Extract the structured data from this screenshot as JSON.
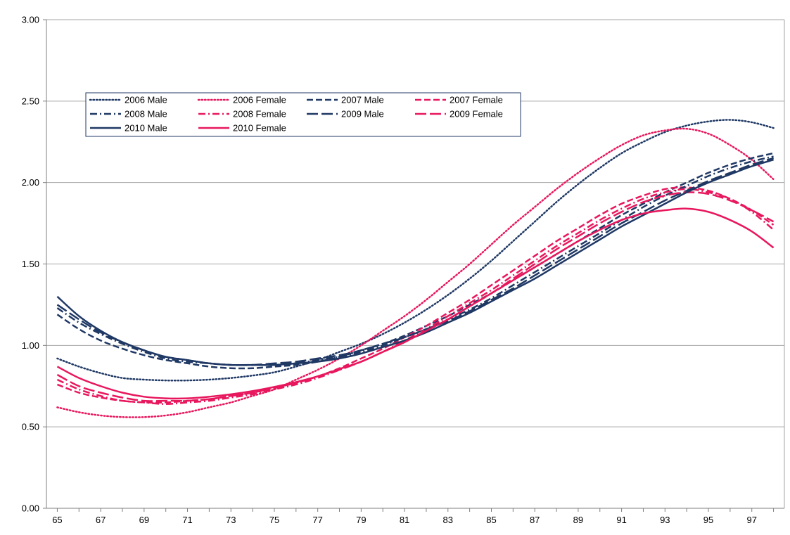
{
  "chart_data": {
    "type": "line",
    "title": "",
    "xlabel": "",
    "ylabel": "",
    "x_ticks": [
      "65",
      "67",
      "69",
      "71",
      "73",
      "75",
      "77",
      "79",
      "81",
      "83",
      "85",
      "87",
      "89",
      "91",
      "93",
      "95",
      "97"
    ],
    "y_ticks": [
      "0.00",
      "0.50",
      "1.00",
      "1.50",
      "2.00",
      "2.50",
      "3.00"
    ],
    "xlim": [
      64.5,
      98.5
    ],
    "ylim": [
      0,
      3
    ],
    "grid": "horizontal",
    "legend_position": "upper-left",
    "x": [
      65,
      66,
      67,
      68,
      69,
      70,
      71,
      72,
      73,
      74,
      75,
      76,
      77,
      78,
      79,
      80,
      81,
      82,
      83,
      84,
      85,
      86,
      87,
      88,
      89,
      90,
      91,
      92,
      93,
      94,
      95,
      96,
      97,
      98
    ],
    "series": [
      {
        "name": "2006 Male",
        "color": "#1f3864",
        "dash": "dot",
        "values": [
          0.92,
          0.87,
          0.83,
          0.8,
          0.79,
          0.785,
          0.785,
          0.79,
          0.8,
          0.815,
          0.835,
          0.87,
          0.91,
          0.96,
          1.01,
          1.07,
          1.14,
          1.22,
          1.31,
          1.41,
          1.52,
          1.64,
          1.76,
          1.88,
          1.99,
          2.09,
          2.18,
          2.25,
          2.31,
          2.35,
          2.375,
          2.385,
          2.37,
          2.335
        ]
      },
      {
        "name": "2006 Female",
        "color": "#e8175d",
        "dash": "dot",
        "values": [
          0.62,
          0.59,
          0.57,
          0.56,
          0.56,
          0.57,
          0.59,
          0.62,
          0.65,
          0.69,
          0.73,
          0.79,
          0.85,
          0.92,
          1.0,
          1.09,
          1.18,
          1.28,
          1.39,
          1.5,
          1.62,
          1.74,
          1.85,
          1.96,
          2.06,
          2.15,
          2.23,
          2.29,
          2.32,
          2.33,
          2.3,
          2.23,
          2.14,
          2.02
        ]
      },
      {
        "name": "2007 Male",
        "color": "#1f3864",
        "dash": "dash",
        "values": [
          1.19,
          1.1,
          1.03,
          0.98,
          0.94,
          0.91,
          0.89,
          0.87,
          0.86,
          0.86,
          0.87,
          0.88,
          0.9,
          0.93,
          0.97,
          1.01,
          1.06,
          1.12,
          1.18,
          1.25,
          1.32,
          1.4,
          1.48,
          1.56,
          1.64,
          1.72,
          1.8,
          1.87,
          1.94,
          2.0,
          2.06,
          2.11,
          2.15,
          2.18
        ]
      },
      {
        "name": "2007 Female",
        "color": "#e8175d",
        "dash": "dash",
        "values": [
          0.76,
          0.71,
          0.68,
          0.66,
          0.65,
          0.65,
          0.66,
          0.67,
          0.69,
          0.71,
          0.74,
          0.77,
          0.81,
          0.86,
          0.92,
          0.98,
          1.05,
          1.12,
          1.2,
          1.28,
          1.37,
          1.46,
          1.55,
          1.64,
          1.72,
          1.8,
          1.87,
          1.92,
          1.96,
          1.97,
          1.95,
          1.9,
          1.83,
          1.74
        ]
      },
      {
        "name": "2008 Male",
        "color": "#1f3864",
        "dash": "dashdot",
        "values": [
          1.23,
          1.14,
          1.07,
          1.01,
          0.96,
          0.92,
          0.9,
          0.89,
          0.88,
          0.88,
          0.88,
          0.89,
          0.91,
          0.93,
          0.96,
          1.0,
          1.05,
          1.1,
          1.16,
          1.22,
          1.29,
          1.37,
          1.45,
          1.53,
          1.61,
          1.69,
          1.77,
          1.85,
          1.92,
          1.98,
          2.04,
          2.09,
          2.13,
          2.16
        ]
      },
      {
        "name": "2008 Female",
        "color": "#e8175d",
        "dash": "dashdot",
        "values": [
          0.79,
          0.73,
          0.69,
          0.66,
          0.65,
          0.64,
          0.65,
          0.66,
          0.68,
          0.7,
          0.73,
          0.76,
          0.8,
          0.85,
          0.9,
          0.96,
          1.03,
          1.1,
          1.18,
          1.26,
          1.34,
          1.43,
          1.52,
          1.61,
          1.69,
          1.77,
          1.84,
          1.9,
          1.94,
          1.96,
          1.94,
          1.9,
          1.82,
          1.71
        ]
      },
      {
        "name": "2009 Male",
        "color": "#1f3864",
        "dash": "longdash",
        "values": [
          1.25,
          1.16,
          1.08,
          1.02,
          0.97,
          0.93,
          0.91,
          0.89,
          0.88,
          0.88,
          0.89,
          0.9,
          0.92,
          0.94,
          0.97,
          1.01,
          1.05,
          1.1,
          1.15,
          1.21,
          1.28,
          1.35,
          1.43,
          1.51,
          1.59,
          1.67,
          1.75,
          1.82,
          1.89,
          1.95,
          2.01,
          2.06,
          2.11,
          2.15
        ]
      },
      {
        "name": "2009 Female",
        "color": "#e8175d",
        "dash": "longdash",
        "values": [
          0.82,
          0.75,
          0.71,
          0.68,
          0.66,
          0.66,
          0.66,
          0.67,
          0.69,
          0.71,
          0.74,
          0.77,
          0.81,
          0.85,
          0.9,
          0.96,
          1.02,
          1.09,
          1.16,
          1.24,
          1.32,
          1.41,
          1.5,
          1.59,
          1.67,
          1.75,
          1.82,
          1.88,
          1.92,
          1.94,
          1.93,
          1.89,
          1.83,
          1.76
        ]
      },
      {
        "name": "2010 Male",
        "color": "#1f3864",
        "dash": "solid",
        "values": [
          1.3,
          1.18,
          1.09,
          1.02,
          0.97,
          0.93,
          0.91,
          0.89,
          0.88,
          0.88,
          0.88,
          0.89,
          0.9,
          0.92,
          0.95,
          0.99,
          1.03,
          1.08,
          1.14,
          1.2,
          1.27,
          1.34,
          1.41,
          1.49,
          1.57,
          1.65,
          1.73,
          1.8,
          1.87,
          1.94,
          2.0,
          2.05,
          2.1,
          2.14
        ]
      },
      {
        "name": "2010 Female",
        "color": "#e8175d",
        "dash": "solid",
        "values": [
          0.87,
          0.8,
          0.75,
          0.71,
          0.685,
          0.675,
          0.675,
          0.685,
          0.7,
          0.72,
          0.745,
          0.775,
          0.81,
          0.855,
          0.9,
          0.96,
          1.02,
          1.09,
          1.16,
          1.24,
          1.32,
          1.4,
          1.48,
          1.56,
          1.64,
          1.71,
          1.77,
          1.81,
          1.83,
          1.84,
          1.82,
          1.77,
          1.7,
          1.6
        ]
      }
    ]
  }
}
